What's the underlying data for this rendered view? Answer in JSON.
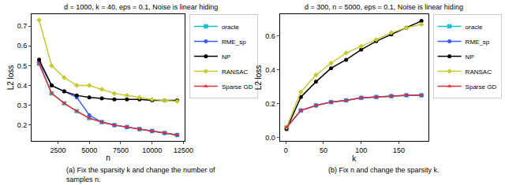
{
  "chart_data": [
    {
      "type": "line",
      "title": "d = 1000, k = 40, eps = 0.1, Noise is linear hiding",
      "x_label": "n",
      "y_label": "L2 loss",
      "caption": [
        "(a) Fix the sparsity k and change the number of",
        "samples n."
      ],
      "x": [
        1000,
        2000,
        3000,
        4000,
        5000,
        6000,
        7000,
        8000,
        9000,
        10000,
        11000,
        12000
      ],
      "xlim": [
        400,
        12600
      ],
      "xticks": [
        2500,
        5000,
        7500,
        10000,
        12500
      ],
      "ylim": [
        0.12,
        0.76
      ],
      "yticks": [
        0.2,
        0.3,
        0.4,
        0.5,
        0.6,
        0.7
      ],
      "grid": false,
      "legend": "right",
      "series": [
        {
          "name": "oracle",
          "color": "#17becf",
          "marker": "x",
          "line_style": "solid",
          "values": [
            0.51,
            0.36,
            0.31,
            0.27,
            0.235,
            0.215,
            0.2,
            0.19,
            0.18,
            0.17,
            0.16,
            0.15
          ]
        },
        {
          "name": "RME_sp",
          "color": "#3a5cff",
          "marker": "circle",
          "line_style": "solid",
          "values": [
            0.52,
            0.4,
            0.37,
            0.34,
            0.25,
            0.215,
            0.2,
            0.19,
            0.18,
            0.17,
            0.16,
            0.15
          ]
        },
        {
          "name": "NP",
          "color": "#000000",
          "marker": "circle",
          "line_style": "solid",
          "values": [
            0.53,
            0.4,
            0.37,
            0.35,
            0.34,
            0.335,
            0.33,
            0.33,
            0.33,
            0.325,
            0.325,
            0.325
          ]
        },
        {
          "name": "RANSAC",
          "color": "#c8c832",
          "marker": "diamond",
          "line_style": "solid",
          "values": [
            0.73,
            0.5,
            0.44,
            0.4,
            0.4,
            0.38,
            0.36,
            0.35,
            0.34,
            0.33,
            0.325,
            0.32
          ]
        },
        {
          "name": "Sparse GD",
          "color": "#e0303a",
          "marker": "triangle",
          "line_style": "solid",
          "values": [
            0.51,
            0.36,
            0.31,
            0.27,
            0.235,
            0.215,
            0.2,
            0.19,
            0.18,
            0.17,
            0.16,
            0.15
          ]
        }
      ]
    },
    {
      "type": "line",
      "title": "d = 300, n = 5000, eps = 0.1, Noise is linear hiding",
      "x_label": "k",
      "y_label": "L2 loss",
      "caption": [
        "(b) Fix n and change the sparsity k."
      ],
      "x": [
        1,
        20,
        40,
        60,
        80,
        100,
        120,
        140,
        160,
        180
      ],
      "xlim": [
        -8,
        189
      ],
      "xticks": [
        0,
        50,
        100,
        150
      ],
      "ylim": [
        -0.02,
        0.73
      ],
      "yticks": [
        {
          "value": 0,
          "label": "0.0"
        },
        0.2,
        0.4,
        0.6
      ],
      "grid": false,
      "legend": "right",
      "series": [
        {
          "name": "oracle",
          "color": "#17becf",
          "marker": "x",
          "line_style": "solid",
          "values": [
            0.06,
            0.16,
            0.19,
            0.21,
            0.22,
            0.235,
            0.24,
            0.245,
            0.25,
            0.25
          ]
        },
        {
          "name": "RME_sp",
          "color": "#3a5cff",
          "marker": "circle",
          "line_style": "solid",
          "values": [
            0.06,
            0.16,
            0.19,
            0.21,
            0.22,
            0.235,
            0.24,
            0.245,
            0.25,
            0.25
          ]
        },
        {
          "name": "NP",
          "color": "#000000",
          "marker": "circle",
          "line_style": "solid",
          "values": [
            0.05,
            0.24,
            0.33,
            0.41,
            0.46,
            0.52,
            0.57,
            0.61,
            0.65,
            0.69
          ]
        },
        {
          "name": "RANSAC",
          "color": "#c8c832",
          "marker": "diamond",
          "line_style": "solid",
          "values": [
            0.06,
            0.27,
            0.37,
            0.44,
            0.5,
            0.54,
            0.58,
            0.62,
            0.65,
            0.67
          ]
        },
        {
          "name": "Sparse GD",
          "color": "#e0303a",
          "marker": "triangle",
          "line_style": "solid",
          "values": [
            0.06,
            0.16,
            0.19,
            0.21,
            0.22,
            0.235,
            0.24,
            0.245,
            0.25,
            0.25
          ]
        }
      ]
    }
  ]
}
